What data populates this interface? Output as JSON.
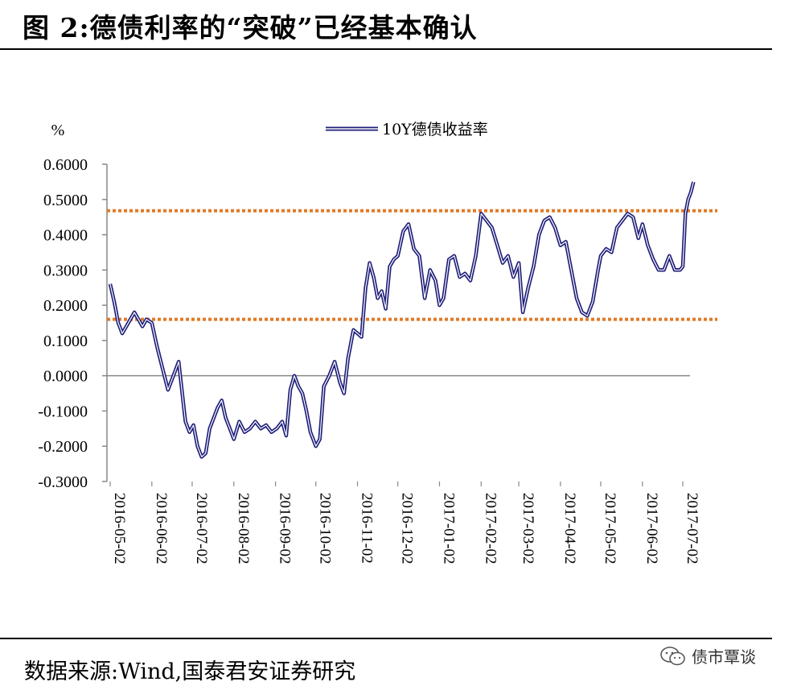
{
  "title": "图 2:德债利率的“突破”已经基本确认",
  "source": "数据来源:Wind,国泰君安证券研究",
  "watermark": "债市覃谈",
  "chart_data": {
    "type": "line",
    "ylabel": "%",
    "ylim": [
      -0.3,
      0.6
    ],
    "yticks": [
      "0.6000",
      "0.5000",
      "0.4000",
      "0.3000",
      "0.2000",
      "0.1000",
      "0.0000",
      "-0.1000",
      "-0.2000",
      "-0.3000"
    ],
    "x_ticks": [
      "2016-05-02",
      "2016-06-02",
      "2016-07-02",
      "2016-08-02",
      "2016-09-02",
      "2016-10-02",
      "2016-11-02",
      "2016-12-02",
      "2017-01-02",
      "2017-02-02",
      "2017-03-02",
      "2017-04-02",
      "2017-05-02",
      "2017-06-02",
      "2017-07-02"
    ],
    "series": [
      {
        "name": "10Y德债收益率",
        "color": "#1f1f7a",
        "x": [
          "2016-05-02",
          "2016-05-05",
          "2016-05-08",
          "2016-05-11",
          "2016-05-14",
          "2016-05-17",
          "2016-05-20",
          "2016-05-23",
          "2016-05-26",
          "2016-05-29",
          "2016-06-02",
          "2016-06-06",
          "2016-06-10",
          "2016-06-14",
          "2016-06-18",
          "2016-06-22",
          "2016-06-24",
          "2016-06-27",
          "2016-06-30",
          "2016-07-03",
          "2016-07-06",
          "2016-07-09",
          "2016-07-12",
          "2016-07-15",
          "2016-07-18",
          "2016-07-21",
          "2016-07-24",
          "2016-07-27",
          "2016-07-30",
          "2016-08-02",
          "2016-08-06",
          "2016-08-10",
          "2016-08-14",
          "2016-08-18",
          "2016-08-22",
          "2016-08-26",
          "2016-08-30",
          "2016-09-03",
          "2016-09-07",
          "2016-09-10",
          "2016-09-13",
          "2016-09-16",
          "2016-09-19",
          "2016-09-22",
          "2016-09-25",
          "2016-09-28",
          "2016-10-02",
          "2016-10-05",
          "2016-10-08",
          "2016-10-12",
          "2016-10-16",
          "2016-10-20",
          "2016-10-23",
          "2016-10-26",
          "2016-10-30",
          "2016-11-02",
          "2016-11-05",
          "2016-11-08",
          "2016-11-11",
          "2016-11-14",
          "2016-11-17",
          "2016-11-20",
          "2016-11-23",
          "2016-11-26",
          "2016-11-29",
          "2016-12-02",
          "2016-12-06",
          "2016-12-10",
          "2016-12-14",
          "2016-12-18",
          "2016-12-22",
          "2016-12-26",
          "2016-12-30",
          "2017-01-02",
          "2017-01-05",
          "2017-01-09",
          "2017-01-13",
          "2017-01-17",
          "2017-01-21",
          "2017-01-25",
          "2017-01-29",
          "2017-02-02",
          "2017-02-06",
          "2017-02-10",
          "2017-02-14",
          "2017-02-18",
          "2017-02-22",
          "2017-02-26",
          "2017-03-02",
          "2017-03-05",
          "2017-03-09",
          "2017-03-13",
          "2017-03-17",
          "2017-03-21",
          "2017-03-25",
          "2017-03-29",
          "2017-04-02",
          "2017-04-06",
          "2017-04-10",
          "2017-04-14",
          "2017-04-18",
          "2017-04-22",
          "2017-04-26",
          "2017-04-30",
          "2017-05-02",
          "2017-05-06",
          "2017-05-10",
          "2017-05-14",
          "2017-05-18",
          "2017-05-22",
          "2017-05-26",
          "2017-05-30",
          "2017-06-02",
          "2017-06-06",
          "2017-06-10",
          "2017-06-14",
          "2017-06-18",
          "2017-06-22",
          "2017-06-26",
          "2017-06-30",
          "2017-07-02",
          "2017-07-04",
          "2017-07-06",
          "2017-07-08",
          "2017-07-10"
        ],
        "values": [
          0.26,
          0.21,
          0.15,
          0.12,
          0.14,
          0.16,
          0.18,
          0.16,
          0.14,
          0.16,
          0.15,
          0.08,
          0.02,
          -0.04,
          0.0,
          0.04,
          -0.03,
          -0.13,
          -0.16,
          -0.14,
          -0.2,
          -0.23,
          -0.22,
          -0.15,
          -0.12,
          -0.09,
          -0.07,
          -0.12,
          -0.15,
          -0.18,
          -0.13,
          -0.16,
          -0.15,
          -0.13,
          -0.15,
          -0.14,
          -0.16,
          -0.15,
          -0.13,
          -0.17,
          -0.04,
          0.0,
          -0.03,
          -0.05,
          -0.1,
          -0.16,
          -0.2,
          -0.18,
          -0.03,
          0.0,
          0.04,
          -0.02,
          -0.05,
          0.05,
          0.13,
          0.12,
          0.11,
          0.25,
          0.32,
          0.28,
          0.22,
          0.24,
          0.19,
          0.31,
          0.33,
          0.34,
          0.41,
          0.43,
          0.36,
          0.34,
          0.22,
          0.3,
          0.27,
          0.2,
          0.22,
          0.33,
          0.34,
          0.28,
          0.29,
          0.27,
          0.34,
          0.46,
          0.44,
          0.42,
          0.37,
          0.32,
          0.34,
          0.28,
          0.32,
          0.18,
          0.25,
          0.31,
          0.4,
          0.44,
          0.45,
          0.42,
          0.37,
          0.38,
          0.3,
          0.22,
          0.18,
          0.17,
          0.21,
          0.3,
          0.34,
          0.36,
          0.35,
          0.42,
          0.44,
          0.46,
          0.45,
          0.39,
          0.43,
          0.37,
          0.33,
          0.3,
          0.3,
          0.34,
          0.3,
          0.3,
          0.31,
          0.46,
          0.5,
          0.52,
          0.55
        ]
      }
    ],
    "reference_lines": [
      {
        "y": 0.468,
        "color": "#e07b28",
        "style": "dotted"
      },
      {
        "y": 0.16,
        "color": "#e07b28",
        "style": "dotted"
      }
    ],
    "legend": "top-center",
    "grid": false
  }
}
